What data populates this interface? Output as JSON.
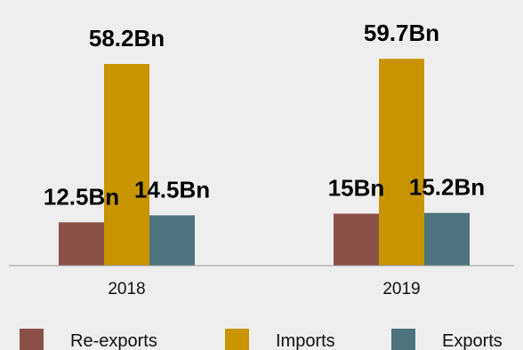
{
  "chart_data": {
    "type": "bar",
    "categories": [
      "2018",
      "2019"
    ],
    "series": [
      {
        "name": "Re-exports",
        "values": [
          12.5,
          15
        ],
        "labels": [
          "12.5Bn",
          "15Bn"
        ],
        "color": "#8b5149"
      },
      {
        "name": "Imports",
        "values": [
          58.2,
          59.7
        ],
        "labels": [
          "58.2Bn",
          "59.7Bn"
        ],
        "color": "#c89500"
      },
      {
        "name": "Exports",
        "values": [
          14.5,
          15.2
        ],
        "labels": [
          "14.5Bn",
          "15.2Bn"
        ],
        "color": "#4d737c"
      }
    ],
    "legend": {
      "position": "bottom"
    },
    "grid": false,
    "axis_color": "#999999"
  }
}
